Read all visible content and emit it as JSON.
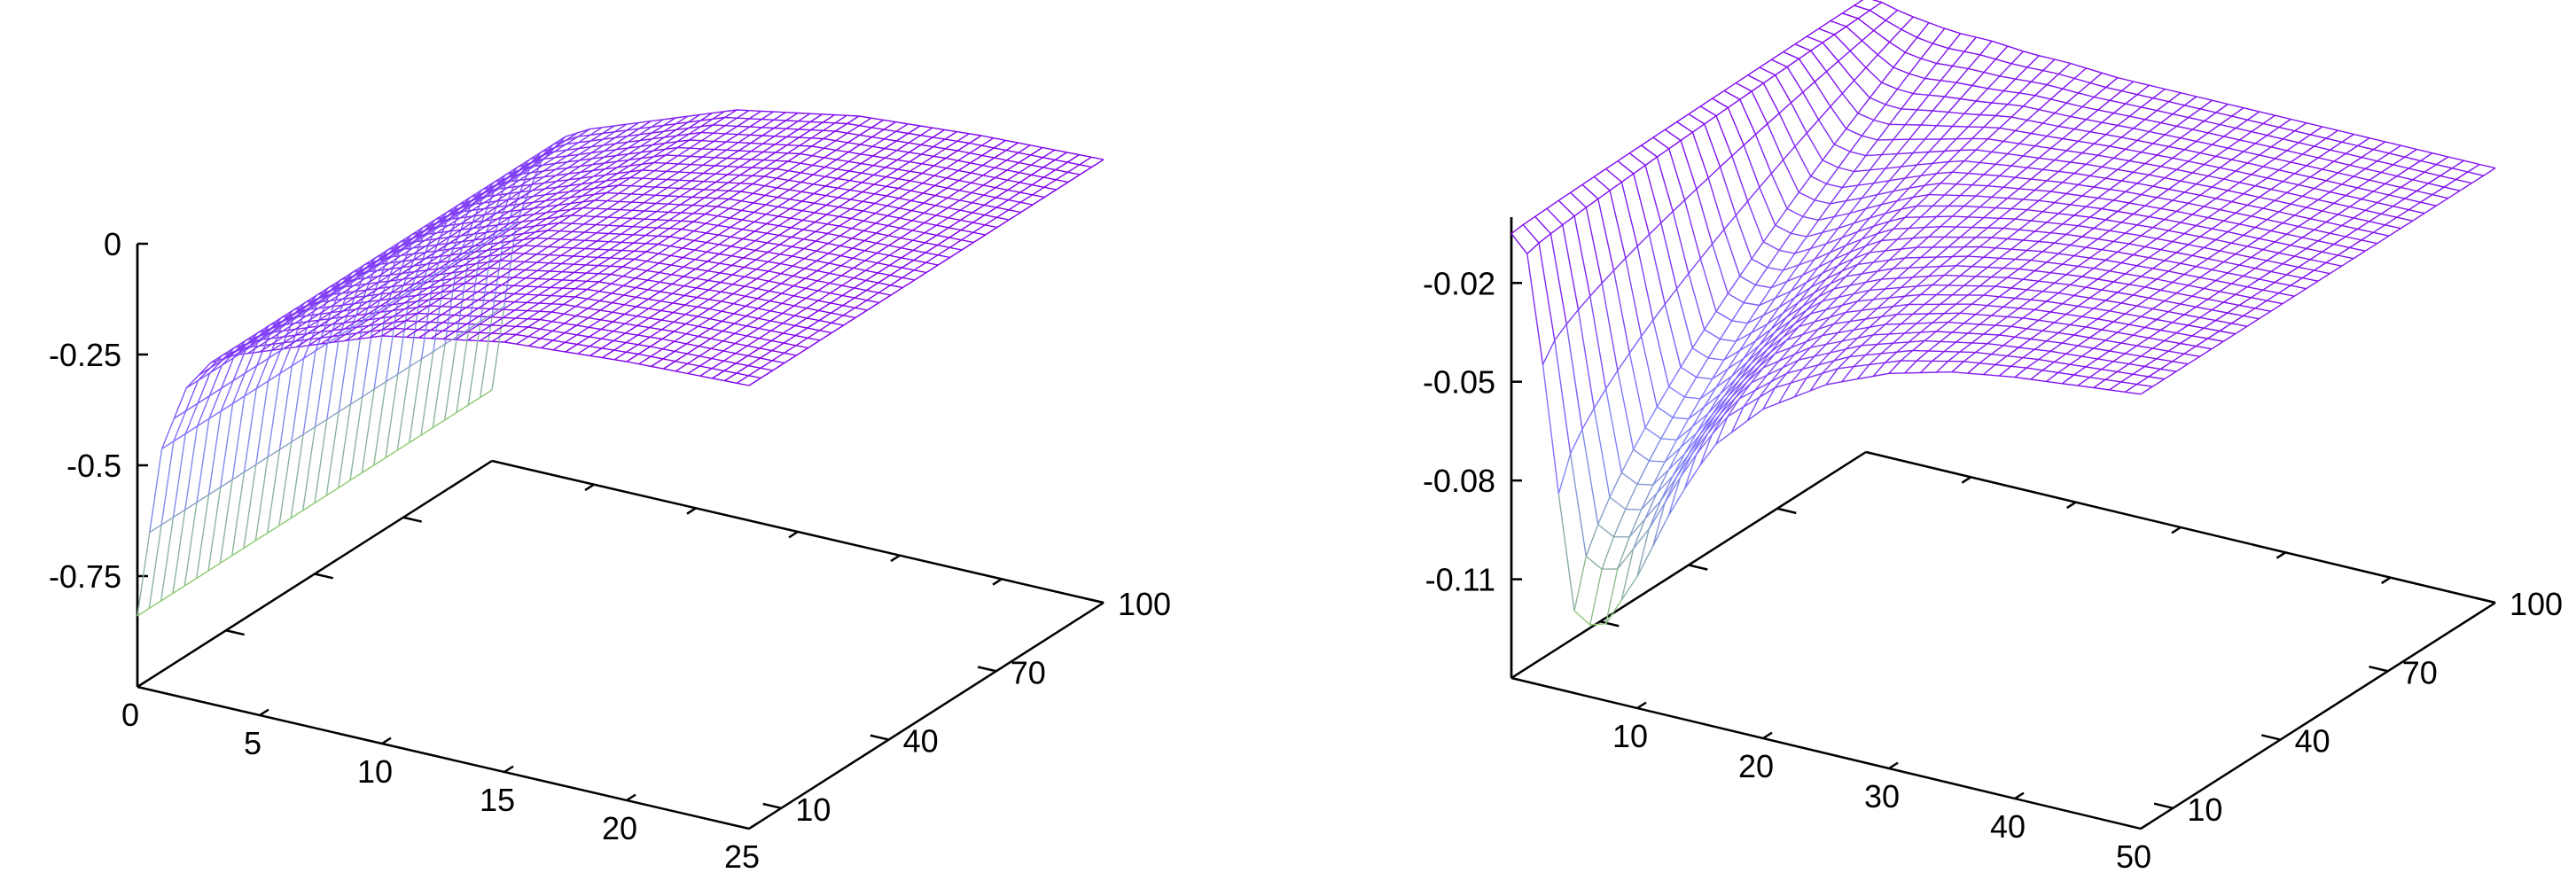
{
  "chart_data": [
    {
      "type": "surface",
      "title": "",
      "xlabel": "",
      "ylabel": "",
      "zlabel": "",
      "x_ticks": [
        "0",
        "5",
        "10",
        "15",
        "20",
        "25"
      ],
      "y_ticks": [
        "10",
        "40",
        "70",
        "100"
      ],
      "z_ticks": [
        "0",
        "-0.25",
        "-0.5",
        "-0.75"
      ],
      "xlim": [
        0,
        25
      ],
      "ylim": [
        1,
        100
      ],
      "zlim": [
        -1,
        0
      ],
      "grid": false,
      "legend": "none",
      "colormap": [
        "#99ee33",
        "#8080ff",
        "#8000ee"
      ],
      "surface_profile": {
        "x": [
          0,
          1,
          2,
          3,
          4,
          5,
          6,
          8,
          10,
          15,
          20,
          25
        ],
        "z": [
          -0.84,
          -0.45,
          -0.3,
          -0.23,
          -0.2,
          -0.18,
          -0.16,
          -0.12,
          -0.08,
          -0.03,
          -0.01,
          0
        ]
      }
    },
    {
      "type": "surface",
      "title": "",
      "xlabel": "",
      "ylabel": "",
      "zlabel": "",
      "x_ticks": [
        "10",
        "20",
        "30",
        "40",
        "50"
      ],
      "y_ticks": [
        "10",
        "40",
        "70",
        "100"
      ],
      "z_ticks": [
        "-0.02",
        "-0.05",
        "-0.08",
        "-0.11"
      ],
      "xlim": [
        0,
        50
      ],
      "ylim": [
        1,
        100
      ],
      "zlim": [
        -0.14,
        0
      ],
      "grid": false,
      "legend": "none",
      "colormap": [
        "#99ee33",
        "#8080ff",
        "#8000ee"
      ],
      "surface_profile": {
        "x": [
          1,
          2,
          3,
          5,
          7,
          10,
          13,
          16,
          20,
          25,
          30,
          35,
          40,
          45,
          50
        ],
        "z_low_y": [
          -0.005,
          -0.025,
          -0.06,
          -0.115,
          -0.12,
          -0.1,
          -0.075,
          -0.055,
          -0.04,
          -0.028,
          -0.02,
          -0.015,
          -0.012,
          -0.01,
          -0.008
        ],
        "z_high_y": [
          -0.002,
          -0.003,
          -0.004,
          -0.005,
          -0.006,
          -0.006,
          -0.007,
          -0.007,
          -0.008,
          -0.008,
          -0.008,
          -0.008,
          -0.008,
          -0.008,
          -0.008
        ]
      }
    }
  ]
}
